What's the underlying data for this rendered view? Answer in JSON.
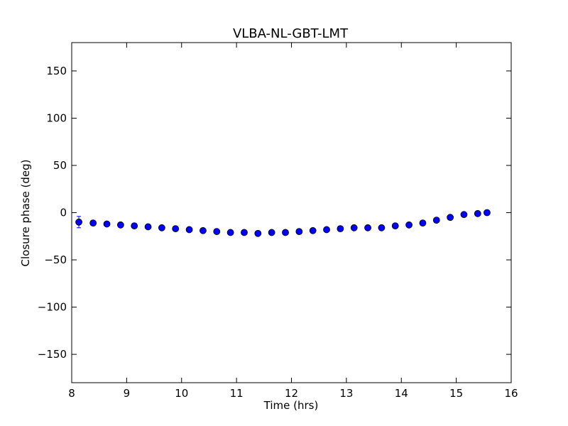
{
  "chart_data": {
    "type": "scatter",
    "title": "VLBA-NL-GBT-LMT",
    "xlabel": "Time (hrs)",
    "ylabel": "Closure phase (deg)",
    "xlim": [
      8,
      16
    ],
    "ylim": [
      -180,
      180
    ],
    "x_ticks": [
      "8",
      "9",
      "10",
      "11",
      "12",
      "13",
      "14",
      "15",
      "16"
    ],
    "y_ticks": [
      "−150",
      "−100",
      "−50",
      "0",
      "50",
      "100",
      "150"
    ],
    "grid": false,
    "marker_color": "#0000ff",
    "series": [
      {
        "x": [
          8.13,
          8.39,
          8.64,
          8.89,
          9.14,
          9.39,
          9.64,
          9.89,
          10.14,
          10.39,
          10.64,
          10.89,
          11.14,
          11.39,
          11.64,
          11.89,
          12.14,
          12.39,
          12.64,
          12.89,
          13.14,
          13.39,
          13.64,
          13.89,
          14.14,
          14.39,
          14.64,
          14.89,
          15.14,
          15.39,
          15.56
        ],
        "y": [
          -10,
          -11,
          -12,
          -13,
          -14,
          -15,
          -16,
          -17,
          -18,
          -19,
          -20,
          -21,
          -21,
          -22,
          -21,
          -21,
          -20,
          -19,
          -18,
          -17,
          -16,
          -16,
          -16,
          -14,
          -13,
          -11,
          -8,
          -5,
          -2,
          -1,
          0
        ],
        "yerr": [
          6,
          1.5,
          1.5,
          1.5,
          1.5,
          1.5,
          1.5,
          1.5,
          1.5,
          1.5,
          1.5,
          1.5,
          1.5,
          1.5,
          1.5,
          1.5,
          1.5,
          1.5,
          1.5,
          1.5,
          1.5,
          1.5,
          1.5,
          1.5,
          1.5,
          1.5,
          1.5,
          1.5,
          1.5,
          1.5,
          1.5
        ]
      }
    ]
  }
}
